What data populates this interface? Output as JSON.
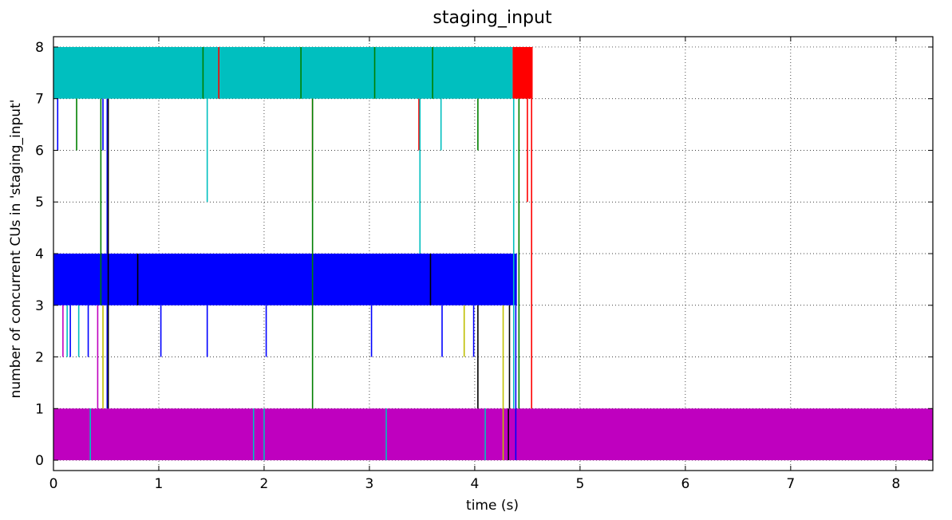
{
  "chart_data": {
    "type": "line",
    "title": "staging_input",
    "xlabel": "time (s)",
    "ylabel": "number of concurrent CUs in 'staging_input'",
    "xlim": [
      0,
      8.35
    ],
    "ylim": [
      -0.2,
      8.2
    ],
    "xticks": [
      0,
      1,
      2,
      3,
      4,
      5,
      6,
      7,
      8
    ],
    "yticks": [
      0,
      1,
      2,
      3,
      4,
      5,
      6,
      7,
      8
    ],
    "grid": true,
    "grid_style": "dotted",
    "colors": {
      "cyan": "#00bfbf",
      "magenta": "#bf00bf",
      "blue": "#0000ff",
      "red": "#ff0000",
      "green": "#008000",
      "black": "#000000",
      "yellow": "#bfbf00"
    },
    "bands": [
      {
        "name": "cyan band 7-8",
        "color": "cyan",
        "y": [
          7,
          8
        ],
        "x": [
          0.0,
          4.36
        ]
      },
      {
        "name": "red band 7-8",
        "color": "red",
        "y": [
          7,
          8
        ],
        "x": [
          4.36,
          4.55
        ]
      },
      {
        "name": "blue band 3-4",
        "color": "blue",
        "y": [
          3,
          4
        ],
        "x": [
          0.0,
          4.4
        ]
      },
      {
        "name": "magenta band 0-1",
        "color": "magenta",
        "y": [
          0,
          1
        ],
        "x": [
          0.0,
          8.35
        ]
      }
    ],
    "spikes": [
      {
        "color": "red",
        "x": 1.57,
        "y": [
          7,
          8
        ]
      },
      {
        "color": "green",
        "x": 1.42,
        "y": [
          7,
          8
        ]
      },
      {
        "color": "green",
        "x": 2.35,
        "y": [
          7,
          8
        ]
      },
      {
        "color": "green",
        "x": 3.05,
        "y": [
          7,
          8
        ]
      },
      {
        "color": "green",
        "x": 3.6,
        "y": [
          7,
          8
        ]
      },
      {
        "color": "black",
        "x": 0.8,
        "y": [
          3,
          4
        ]
      },
      {
        "color": "black",
        "x": 3.58,
        "y": [
          3,
          4
        ]
      },
      {
        "color": "cyan",
        "x": 0.35,
        "y": [
          0,
          1
        ]
      },
      {
        "color": "cyan",
        "x": 1.9,
        "y": [
          0,
          1
        ]
      },
      {
        "color": "cyan",
        "x": 2.0,
        "y": [
          0,
          1
        ]
      },
      {
        "color": "cyan",
        "x": 3.16,
        "y": [
          0,
          1
        ]
      },
      {
        "color": "cyan",
        "x": 4.1,
        "y": [
          0,
          1
        ]
      },
      {
        "color": "black",
        "x": 4.32,
        "y": [
          0,
          1
        ]
      },
      {
        "color": "blue",
        "x": 0.04,
        "y": [
          6,
          7
        ]
      },
      {
        "color": "green",
        "x": 0.22,
        "y": [
          6,
          7
        ]
      },
      {
        "color": "green",
        "x": 0.45,
        "y": [
          3,
          7
        ]
      },
      {
        "color": "blue",
        "x": 0.47,
        "y": [
          6,
          7
        ]
      },
      {
        "color": "blue",
        "x": 0.51,
        "y": [
          1,
          7
        ]
      },
      {
        "color": "black",
        "x": 0.52,
        "y": [
          1,
          7
        ]
      },
      {
        "color": "cyan",
        "x": 1.46,
        "y": [
          5,
          7
        ]
      },
      {
        "color": "red",
        "x": 2.46,
        "y": [
          5,
          7
        ]
      },
      {
        "color": "green",
        "x": 2.46,
        "y": [
          1,
          7
        ]
      },
      {
        "color": "red",
        "x": 3.47,
        "y": [
          6,
          7
        ]
      },
      {
        "color": "cyan",
        "x": 3.48,
        "y": [
          4,
          7
        ]
      },
      {
        "color": "cyan",
        "x": 3.68,
        "y": [
          6,
          7
        ]
      },
      {
        "color": "green",
        "x": 4.03,
        "y": [
          6,
          7
        ]
      },
      {
        "color": "cyan",
        "x": 4.37,
        "y": [
          1,
          7
        ]
      },
      {
        "color": "green",
        "x": 4.42,
        "y": [
          1,
          7
        ]
      },
      {
        "color": "red",
        "x": 4.5,
        "y": [
          5,
          7
        ]
      },
      {
        "color": "red",
        "x": 4.54,
        "y": [
          1,
          7
        ]
      },
      {
        "color": "magenta",
        "x": 0.09,
        "y": [
          2,
          3
        ]
      },
      {
        "color": "cyan",
        "x": 0.13,
        "y": [
          2,
          3
        ]
      },
      {
        "color": "blue",
        "x": 0.16,
        "y": [
          2,
          3
        ]
      },
      {
        "color": "cyan",
        "x": 0.24,
        "y": [
          2,
          3
        ]
      },
      {
        "color": "blue",
        "x": 0.33,
        "y": [
          2,
          3
        ]
      },
      {
        "color": "magenta",
        "x": 0.42,
        "y": [
          1,
          3
        ]
      },
      {
        "color": "yellow",
        "x": 0.47,
        "y": [
          1,
          3
        ]
      },
      {
        "color": "blue",
        "x": 1.02,
        "y": [
          2,
          3
        ]
      },
      {
        "color": "blue",
        "x": 1.46,
        "y": [
          2,
          3
        ]
      },
      {
        "color": "blue",
        "x": 2.02,
        "y": [
          2,
          3
        ]
      },
      {
        "color": "blue",
        "x": 3.02,
        "y": [
          2,
          3
        ]
      },
      {
        "color": "blue",
        "x": 3.69,
        "y": [
          2,
          3
        ]
      },
      {
        "color": "yellow",
        "x": 3.9,
        "y": [
          2,
          3
        ]
      },
      {
        "color": "blue",
        "x": 3.99,
        "y": [
          2,
          3
        ]
      },
      {
        "color": "black",
        "x": 4.03,
        "y": [
          1,
          3
        ]
      },
      {
        "color": "yellow",
        "x": 4.27,
        "y": [
          0,
          3
        ]
      },
      {
        "color": "black",
        "x": 4.33,
        "y": [
          1,
          3
        ]
      },
      {
        "color": "blue",
        "x": 4.39,
        "y": [
          0,
          3
        ]
      }
    ]
  }
}
